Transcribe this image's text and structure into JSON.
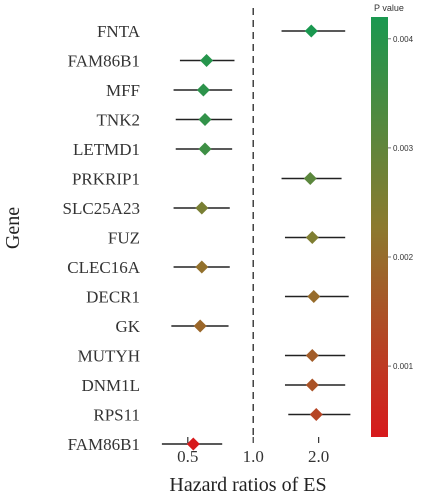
{
  "chart_data": {
    "type": "forest",
    "xlabel": "Hazard ratios of ES",
    "ylabel": "Gene",
    "x_scale": "log",
    "x_ticks": [
      0.5,
      1.0,
      2.0
    ],
    "x_tick_labels": [
      "0.5",
      "1.0",
      "2.0"
    ],
    "reference_line": 1.0,
    "legend_title": "P value",
    "legend_ticks": [
      0.001,
      0.002,
      0.003,
      0.004
    ],
    "legend_tick_labels": [
      "0.001",
      "0.002",
      "0.003",
      "0.004"
    ],
    "legend_range": [
      0.00035,
      0.0042
    ],
    "color_low": "#d7191c",
    "color_mid": "#8c7a2e",
    "color_high": "#1a9850",
    "rows": [
      {
        "gene": "FNTA",
        "hr": 1.85,
        "lower": 1.35,
        "upper": 2.65,
        "p": 0.0042
      },
      {
        "gene": "FAM86B1",
        "hr": 0.61,
        "lower": 0.46,
        "upper": 0.82,
        "p": 0.004
      },
      {
        "gene": "MFF",
        "hr": 0.59,
        "lower": 0.43,
        "upper": 0.8,
        "p": 0.0039
      },
      {
        "gene": "TNK2",
        "hr": 0.6,
        "lower": 0.44,
        "upper": 0.8,
        "p": 0.0038
      },
      {
        "gene": "LETMD1",
        "hr": 0.6,
        "lower": 0.44,
        "upper": 0.8,
        "p": 0.0036
      },
      {
        "gene": "PRKRIP1",
        "hr": 1.83,
        "lower": 1.35,
        "upper": 2.55,
        "p": 0.0031
      },
      {
        "gene": "SLC25A23",
        "hr": 0.58,
        "lower": 0.43,
        "upper": 0.78,
        "p": 0.0026
      },
      {
        "gene": "FUZ",
        "hr": 1.87,
        "lower": 1.4,
        "upper": 2.65,
        "p": 0.0025
      },
      {
        "gene": "CLEC16A",
        "hr": 0.58,
        "lower": 0.43,
        "upper": 0.78,
        "p": 0.0021
      },
      {
        "gene": "DECR1",
        "hr": 1.9,
        "lower": 1.4,
        "upper": 2.75,
        "p": 0.002
      },
      {
        "gene": "GK",
        "hr": 0.57,
        "lower": 0.42,
        "upper": 0.77,
        "p": 0.0019
      },
      {
        "gene": "MUTYH",
        "hr": 1.87,
        "lower": 1.4,
        "upper": 2.65,
        "p": 0.0017
      },
      {
        "gene": "DNM1L",
        "hr": 1.87,
        "lower": 1.4,
        "upper": 2.65,
        "p": 0.0015
      },
      {
        "gene": "RPS11",
        "hr": 1.95,
        "lower": 1.45,
        "upper": 2.8,
        "p": 0.0012
      },
      {
        "gene": "FAM86B1",
        "hr": 0.53,
        "lower": 0.38,
        "upper": 0.72,
        "p": 0.00035
      }
    ]
  }
}
